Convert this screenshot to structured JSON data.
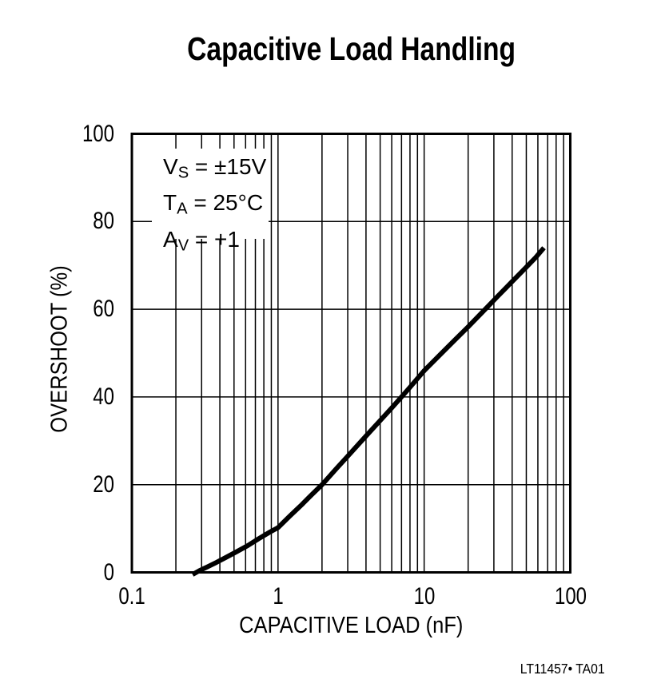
{
  "chart_data": {
    "type": "line",
    "title": "Capacitive Load Handling",
    "xlabel": "CAPACITIVE LOAD (nF)",
    "ylabel": "OVERSHOOT (%)",
    "x_scale": "log",
    "y_scale": "linear",
    "xlim": [
      0.1,
      100
    ],
    "ylim": [
      0,
      100
    ],
    "grid": {
      "x_minor_log": true,
      "y_major_only": true,
      "color": "#000000"
    },
    "x_ticks": [
      {
        "value": 0.1,
        "label": "0.1"
      },
      {
        "value": 1,
        "label": "1"
      },
      {
        "value": 10,
        "label": "10"
      },
      {
        "value": 100,
        "label": "100"
      }
    ],
    "y_ticks": [
      {
        "value": 0,
        "label": "0"
      },
      {
        "value": 20,
        "label": "20"
      },
      {
        "value": 40,
        "label": "40"
      },
      {
        "value": 60,
        "label": "60"
      },
      {
        "value": 80,
        "label": "80"
      },
      {
        "value": 100,
        "label": "100"
      }
    ],
    "series": [
      {
        "name": "overshoot-vs-capacitive-load",
        "color": "#000000",
        "line_width": 6,
        "points": [
          [
            0.26,
            -0.5
          ],
          [
            0.29,
            0.4
          ],
          [
            0.33,
            1.3
          ],
          [
            0.38,
            2.3
          ],
          [
            0.44,
            3.4
          ],
          [
            0.52,
            4.7
          ],
          [
            0.62,
            6.1
          ],
          [
            0.74,
            7.7
          ],
          [
            0.88,
            9.2
          ],
          [
            1,
            10.2
          ],
          [
            1.2,
            12.8
          ],
          [
            1.45,
            15.4
          ],
          [
            1.7,
            17.7
          ],
          [
            2,
            20
          ],
          [
            2.5,
            23.6
          ],
          [
            3,
            26.5
          ],
          [
            4,
            31.1
          ],
          [
            5,
            34.6
          ],
          [
            6,
            37.5
          ],
          [
            7,
            40
          ],
          [
            8,
            42.2
          ],
          [
            10,
            46
          ],
          [
            13,
            49.8
          ],
          [
            16,
            52.8
          ],
          [
            20,
            56
          ],
          [
            25,
            59.3
          ],
          [
            32,
            63
          ],
          [
            40,
            66.3
          ],
          [
            50,
            69.6
          ],
          [
            58,
            71.8
          ],
          [
            66,
            74
          ]
        ]
      }
    ],
    "annotation": {
      "lines": [
        {
          "pre": "V",
          "sub": "S",
          "post": " = ±15V"
        },
        {
          "pre": "T",
          "sub": "A",
          "post": " = 25°C"
        },
        {
          "pre": "A",
          "sub": "V",
          "post": " = +1"
        }
      ]
    },
    "footnote": "LT11457• TA01"
  }
}
